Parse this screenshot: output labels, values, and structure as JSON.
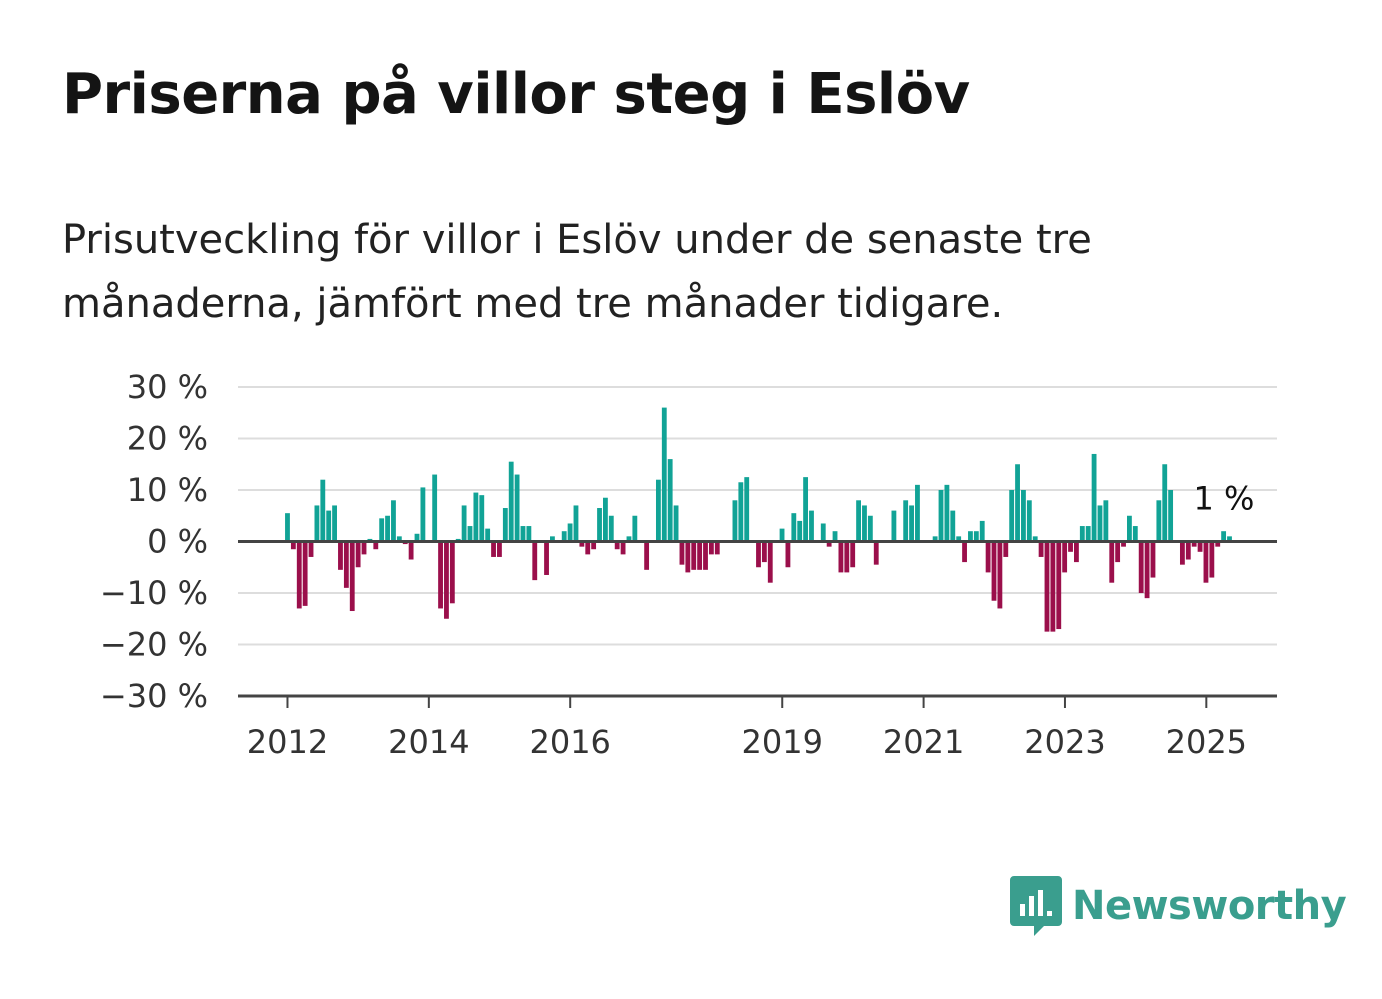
{
  "title": "Priserna på villor steg i Eslöv",
  "subtitle": "Prisutveckling för villor i Eslöv under de senaste tre månaderna, jämfört med tre månader tidigare.",
  "brand": {
    "name": "Newsworthy",
    "icon": "newsworthy-logo-icon",
    "color": "#3a9e8e"
  },
  "colors": {
    "positive": "#11a396",
    "negative": "#9b0f4b",
    "grid": "#dddddd",
    "axis": "#444444"
  },
  "chart_data": {
    "type": "bar",
    "xlabel": "",
    "ylabel": "",
    "ylim": [
      -30,
      30
    ],
    "y_ticks": [
      {
        "value": 30,
        "label": "30 %"
      },
      {
        "value": 20,
        "label": "20 %"
      },
      {
        "value": 10,
        "label": "10 %"
      },
      {
        "value": 0,
        "label": "0 %"
      },
      {
        "value": -10,
        "label": "−10 %"
      },
      {
        "value": -20,
        "label": "−20 %"
      },
      {
        "value": -30,
        "label": "−30 %"
      }
    ],
    "x_ticks": [
      {
        "value": 2012.0,
        "label": "2012"
      },
      {
        "value": 2014.0,
        "label": "2014"
      },
      {
        "value": 2016.0,
        "label": "2016"
      },
      {
        "value": 2019.0,
        "label": "2019"
      },
      {
        "value": 2021.0,
        "label": "2021"
      },
      {
        "value": 2023.0,
        "label": "2023"
      },
      {
        "value": 2025.0,
        "label": "2025"
      }
    ],
    "x_start": 2012.0,
    "x_step": 0.0833,
    "xlim": [
      2011.3,
      2026.0
    ],
    "grid": true,
    "annotation": {
      "text": "1 %",
      "x": 2025.25,
      "y": 1
    },
    "series": [
      {
        "values": [
          5.5,
          -1.5,
          -13,
          -12.5,
          -3,
          7,
          12,
          6,
          7,
          -5.5,
          -9,
          -13.5,
          -5,
          -2.5,
          0.5,
          -1.5,
          4.5,
          5,
          8,
          1,
          -0.5,
          -3.5,
          1.5,
          10.5,
          0,
          13,
          -13,
          -15,
          -12,
          0.5,
          7,
          3,
          9.5,
          9,
          2.5,
          -3,
          -3,
          6.5,
          15.5,
          13,
          3,
          3,
          -7.5,
          0,
          -6.5,
          1,
          0,
          2,
          3.5,
          7,
          -1,
          -2.5,
          -1.5,
          6.5,
          8.5,
          5,
          -1.5,
          -2.5,
          1,
          5,
          0,
          -5.5,
          0,
          12,
          26,
          16,
          7,
          -4.5,
          -6,
          -5.5,
          -5.5,
          -5.5,
          -2.5,
          -2.5,
          0,
          0,
          8,
          11.5,
          12.5,
          0,
          -5,
          -4,
          -8,
          0,
          2.5,
          -5,
          5.5,
          4,
          12.5,
          6,
          0,
          3.5,
          -1,
          2,
          -6,
          -6,
          -5,
          8,
          7,
          5,
          -4.5,
          0,
          0,
          6,
          0,
          8,
          7,
          11,
          0,
          0,
          1,
          10,
          11,
          6,
          1,
          -4,
          2,
          2,
          4,
          -6,
          -11.5,
          -13,
          -3,
          10,
          15,
          10,
          8,
          1,
          -3,
          -17.5,
          -17.5,
          -17,
          -6,
          -2,
          -4,
          3,
          3,
          17,
          7,
          8,
          -8,
          -4,
          -1,
          5,
          3,
          -10,
          -11,
          -7,
          8,
          15,
          10,
          0,
          -4.5,
          -3.5,
          -1,
          -2,
          -8,
          -7,
          -1,
          2,
          1
        ]
      }
    ]
  }
}
